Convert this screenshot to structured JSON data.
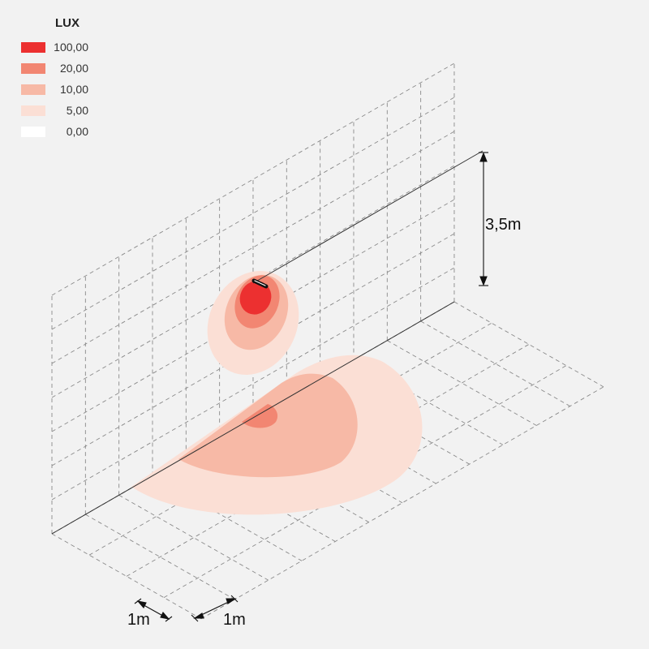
{
  "legend": {
    "title": "LUX",
    "items": [
      {
        "value": "100,00",
        "color": "#ec3030"
      },
      {
        "value": "20,00",
        "color": "#f28672"
      },
      {
        "value": "10,00",
        "color": "#f7b9a6"
      },
      {
        "value": "5,00",
        "color": "#fbdfd5"
      },
      {
        "value": "0,00",
        "color": "#ffffff"
      }
    ]
  },
  "dimensions": {
    "height": "3,5m",
    "grid_x": "1m",
    "grid_y": "1m"
  },
  "fixture_color": "#111111"
}
